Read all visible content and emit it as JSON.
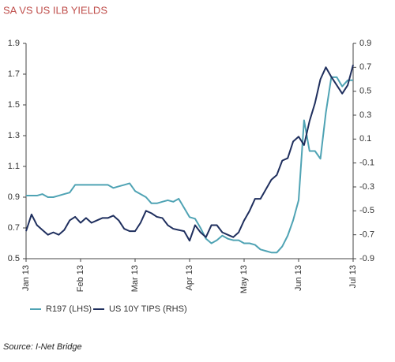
{
  "chart_data": {
    "type": "line",
    "title": "SA VS US ILB YIELDS",
    "source": "Source: I-Net Bridge",
    "x": [
      0,
      0.1,
      0.2,
      0.3,
      0.4,
      0.5,
      0.6,
      0.7,
      0.8,
      0.9,
      1,
      1.1,
      1.2,
      1.3,
      1.4,
      1.5,
      1.6,
      1.7,
      1.8,
      1.9,
      2,
      2.1,
      2.2,
      2.3,
      2.4,
      2.5,
      2.6,
      2.7,
      2.8,
      2.9,
      3,
      3.1,
      3.2,
      3.3,
      3.4,
      3.5,
      3.6,
      3.7,
      3.8,
      3.9,
      4,
      4.1,
      4.2,
      4.3,
      4.4,
      4.5,
      4.6,
      4.7,
      4.8,
      4.9,
      5,
      5.1,
      5.2,
      5.3,
      5.4,
      5.5,
      5.6,
      5.7,
      5.8,
      5.9,
      6
    ],
    "xlim": [
      0,
      6
    ],
    "xticks": [
      {
        "value": 0,
        "label": "Jan 13"
      },
      {
        "value": 1,
        "label": "Feb 13"
      },
      {
        "value": 2,
        "label": "Mar 13"
      },
      {
        "value": 3,
        "label": "Apr 13"
      },
      {
        "value": 4,
        "label": "May 13"
      },
      {
        "value": 5,
        "label": "Jun 13"
      },
      {
        "value": 6,
        "label": "Jul 13"
      }
    ],
    "ylim": [
      0.5,
      1.9
    ],
    "yticks": [
      0.5,
      0.7,
      0.9,
      1.1,
      1.3,
      1.5,
      1.7,
      1.9
    ],
    "y2lim": [
      -0.9,
      0.9
    ],
    "y2ticks": [
      -0.9,
      -0.7,
      -0.5,
      -0.3,
      -0.1,
      0.1,
      0.3,
      0.5,
      0.7,
      0.9
    ],
    "grid": false,
    "series": [
      {
        "name": "R197 (LHS)",
        "color": "#4fa3b4",
        "axis": "y",
        "values": [
          0.91,
          0.91,
          0.91,
          0.92,
          0.9,
          0.9,
          0.91,
          0.92,
          0.93,
          0.98,
          0.98,
          0.98,
          0.98,
          0.98,
          0.98,
          0.98,
          0.96,
          0.97,
          0.98,
          0.99,
          0.94,
          0.92,
          0.9,
          0.86,
          0.86,
          0.87,
          0.88,
          0.87,
          0.89,
          0.83,
          0.77,
          0.76,
          0.7,
          0.63,
          0.6,
          0.62,
          0.65,
          0.63,
          0.62,
          0.62,
          0.6,
          0.6,
          0.59,
          0.56,
          0.55,
          0.54,
          0.54,
          0.58,
          0.65,
          0.75,
          0.88,
          1.4,
          1.2,
          1.2,
          1.15,
          1.45,
          1.68,
          1.68,
          1.62,
          1.66,
          1.66
        ]
      },
      {
        "name": "US 10Y TIPS (RHS)",
        "color": "#1f2f5e",
        "axis": "y2",
        "values": [
          -0.67,
          -0.53,
          -0.62,
          -0.66,
          -0.7,
          -0.68,
          -0.7,
          -0.66,
          -0.58,
          -0.55,
          -0.6,
          -0.56,
          -0.6,
          -0.58,
          -0.56,
          -0.56,
          -0.54,
          -0.58,
          -0.65,
          -0.67,
          -0.67,
          -0.6,
          -0.5,
          -0.52,
          -0.55,
          -0.56,
          -0.62,
          -0.65,
          -0.66,
          -0.67,
          -0.75,
          -0.62,
          -0.68,
          -0.72,
          -0.62,
          -0.62,
          -0.68,
          -0.7,
          -0.72,
          -0.68,
          -0.58,
          -0.5,
          -0.4,
          -0.4,
          -0.32,
          -0.24,
          -0.2,
          -0.08,
          -0.06,
          0.08,
          0.12,
          0.05,
          0.25,
          0.4,
          0.6,
          0.7,
          0.62,
          0.55,
          0.48,
          0.55,
          0.72
        ]
      }
    ]
  }
}
